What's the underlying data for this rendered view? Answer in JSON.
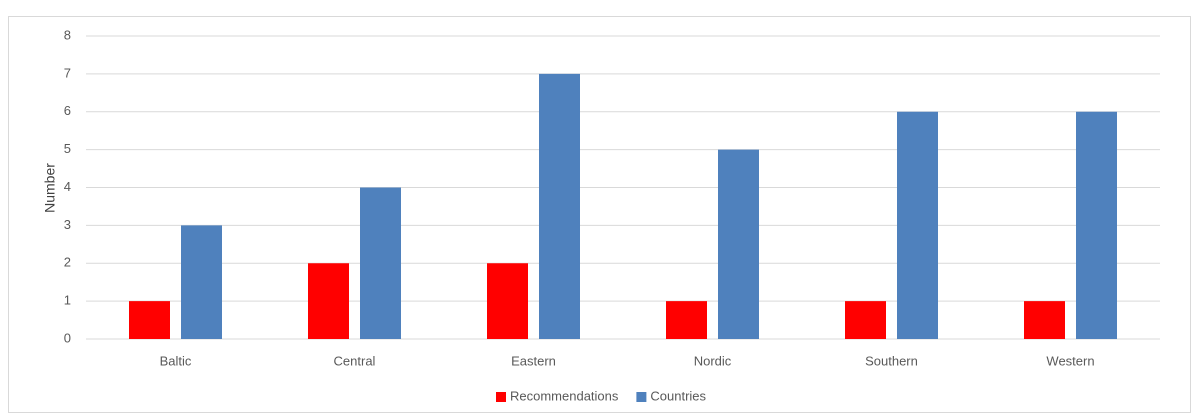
{
  "chart_data": {
    "type": "bar",
    "title": "",
    "xlabel": "",
    "ylabel": "Number",
    "ylim": [
      0,
      8
    ],
    "yticks": [
      "0",
      "1",
      "2",
      "3",
      "4",
      "5",
      "6",
      "7",
      "8"
    ],
    "grid": true,
    "legend_position": "bottom",
    "categories": [
      "Baltic",
      "Central",
      "Eastern",
      "Nordic",
      "Southern",
      "Western"
    ],
    "series": [
      {
        "name": "Recommendations",
        "color": "#ff0000",
        "values": [
          1,
          2,
          2,
          1,
          1,
          1
        ]
      },
      {
        "name": "Countries",
        "color": "#4f81bd",
        "values": [
          3,
          4,
          7,
          5,
          6,
          6
        ]
      }
    ]
  }
}
